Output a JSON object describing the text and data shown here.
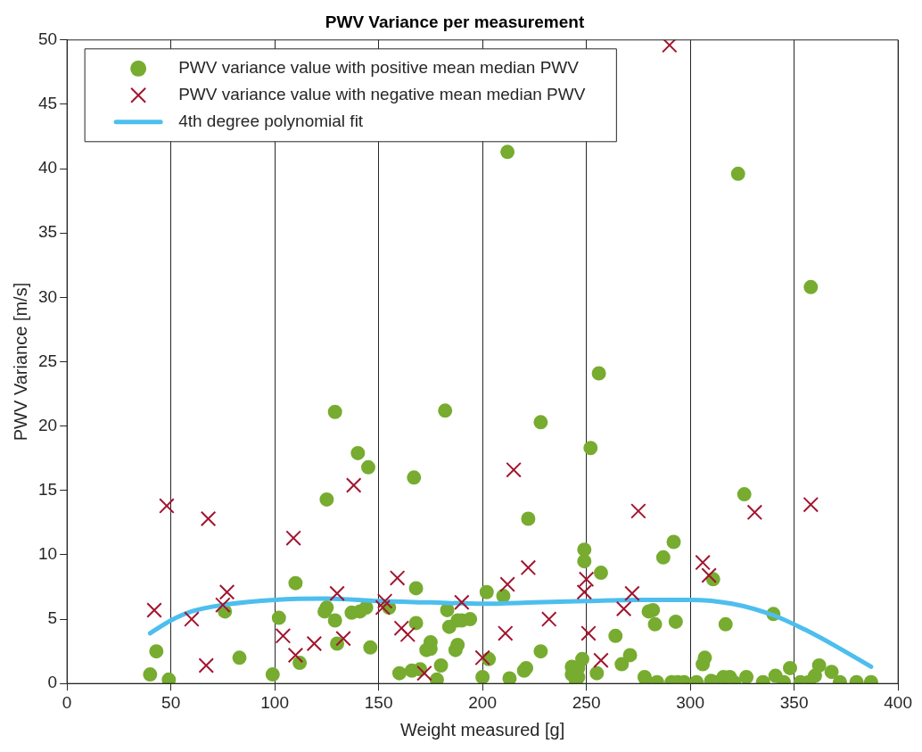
{
  "chart_data": {
    "type": "scatter",
    "title": "PWV Variance per measurement",
    "xlabel": "Weight measured [g]",
    "ylabel": "PWV Variance [m/s]",
    "xlim": [
      0,
      400
    ],
    "xticks": [
      0,
      50,
      100,
      150,
      200,
      250,
      300,
      350,
      400
    ],
    "ylim": [
      0,
      50
    ],
    "yticks": [
      0,
      5,
      10,
      15,
      20,
      25,
      30,
      35,
      40,
      45,
      50
    ],
    "grid": "x",
    "legend": "top left",
    "series": [
      {
        "name": "PWV variance value with positive mean median PWV",
        "type": "scatter",
        "marker": "circle",
        "color": "#77ac30",
        "x": [
          40,
          43,
          49,
          76,
          83,
          99,
          102,
          110,
          112,
          124,
          125,
          125,
          129,
          129,
          130,
          137,
          140,
          141,
          144,
          145,
          146,
          155,
          160,
          166,
          167,
          168,
          168,
          170,
          173,
          175,
          175,
          178,
          180,
          182,
          183,
          184,
          187,
          188,
          188,
          190,
          194,
          200,
          202,
          203,
          210,
          212,
          213,
          220,
          221,
          222,
          228,
          228,
          243,
          243,
          245,
          246,
          246,
          248,
          249,
          249,
          252,
          256,
          257,
          255,
          264,
          267,
          271,
          278,
          279,
          280,
          282,
          283,
          284,
          287,
          291,
          292,
          293,
          294,
          297,
          303,
          306,
          307,
          310,
          311,
          312,
          316,
          317,
          319,
          321,
          323,
          326,
          327,
          335,
          340,
          341,
          345,
          348,
          353,
          357,
          358,
          360,
          362,
          368,
          372,
          380,
          387
        ],
        "values": [
          0.7,
          2.5,
          0.3,
          5.6,
          2.0,
          0.7,
          5.1,
          7.8,
          1.6,
          5.6,
          5.9,
          14.3,
          21.1,
          4.9,
          3.1,
          5.5,
          17.9,
          5.6,
          5.9,
          16.8,
          2.8,
          5.9,
          0.8,
          1.0,
          16.0,
          7.4,
          4.7,
          1.1,
          2.6,
          2.7,
          3.2,
          0.3,
          1.4,
          21.2,
          5.7,
          4.4,
          2.6,
          3.0,
          4.9,
          4.9,
          5.0,
          0.5,
          7.1,
          1.9,
          6.8,
          41.3,
          0.4,
          1.0,
          1.2,
          12.8,
          2.5,
          20.3,
          1.3,
          0.7,
          0.2,
          0.5,
          1.2,
          1.9,
          10.4,
          9.5,
          18.3,
          24.1,
          8.6,
          0.8,
          3.7,
          1.5,
          2.2,
          0.5,
          0.1,
          5.6,
          5.7,
          4.6,
          0.1,
          9.8,
          0.1,
          11.0,
          4.8,
          0.1,
          0.1,
          0.1,
          1.5,
          2.0,
          0.2,
          8.1,
          0.1,
          0.5,
          4.6,
          0.5,
          0.1,
          39.6,
          14.7,
          0.5,
          0.1,
          5.4,
          0.6,
          0.1,
          1.2,
          0.1,
          0.1,
          30.8,
          0.6,
          1.4,
          0.9,
          0.1,
          0.1,
          0.1
        ]
      },
      {
        "name": "PWV variance value with negative mean median PWV",
        "type": "scatter",
        "marker": "cross",
        "color": "#a2142f",
        "x": [
          42,
          48,
          60,
          67,
          68,
          75,
          77,
          104,
          109,
          110,
          119,
          130,
          133,
          138,
          152,
          153,
          159,
          161,
          164,
          172,
          190,
          200,
          211,
          212,
          215,
          222,
          232,
          249,
          250,
          251,
          257,
          268,
          272,
          275,
          290,
          306,
          309,
          331,
          358
        ],
        "values": [
          5.7,
          13.8,
          5.0,
          1.4,
          12.8,
          6.1,
          7.1,
          3.7,
          11.3,
          2.2,
          3.1,
          7.0,
          3.5,
          15.4,
          5.9,
          6.4,
          8.2,
          4.3,
          3.8,
          0.8,
          6.3,
          2.0,
          3.9,
          7.7,
          16.6,
          9.0,
          5.0,
          7.1,
          8.1,
          3.9,
          1.8,
          5.8,
          7.0,
          13.4,
          49.6,
          9.4,
          8.4,
          13.3,
          13.9
        ]
      },
      {
        "name": "4th degree polynomial fit",
        "type": "line",
        "marker": "none",
        "line_style": "solid",
        "color": "#4dbeee",
        "x": [
          40,
          50,
          60,
          75,
          100,
          125,
          150,
          175,
          200,
          225,
          250,
          275,
          300,
          320,
          340,
          355,
          370,
          387
        ],
        "values": [
          3.9,
          4.9,
          5.6,
          6.1,
          6.5,
          6.6,
          6.4,
          6.3,
          6.2,
          6.3,
          6.4,
          6.5,
          6.5,
          6.2,
          5.3,
          4.2,
          2.9,
          1.3
        ]
      }
    ]
  }
}
